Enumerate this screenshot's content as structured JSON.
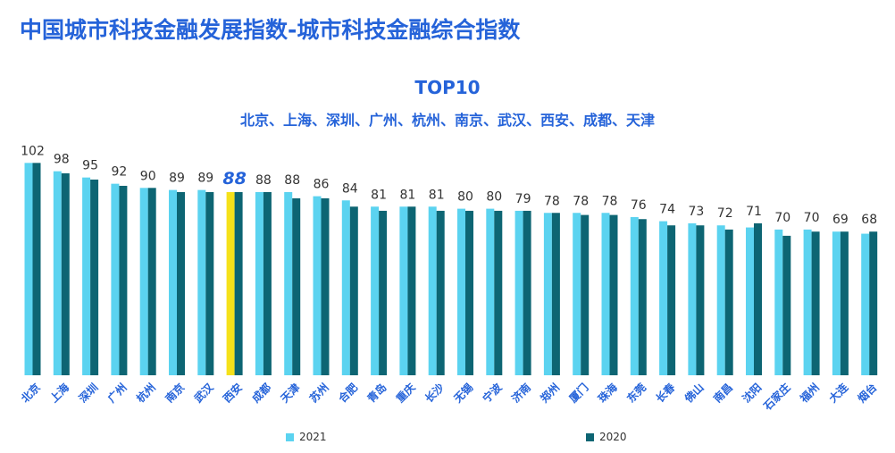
{
  "title": "中国城市科技金融发展指数-城市科技金融综合指数",
  "subtitle1": "TOP10",
  "subtitle2": "北京、上海、深圳、广州、杭州、南京、武汉、西安、成都、天津",
  "colors": {
    "s2021": "#5bd3f0",
    "s2020": "#0d6573",
    "highlight": "#f5e11a",
    "label": "#2563d9",
    "value": "#333333"
  },
  "chart_data": {
    "type": "bar",
    "categories": [
      "北京",
      "上海",
      "深圳",
      "广州",
      "杭州",
      "南京",
      "武汉",
      "西安",
      "成都",
      "天津",
      "苏州",
      "合肥",
      "青岛",
      "重庆",
      "长沙",
      "无锡",
      "宁波",
      "济南",
      "郑州",
      "厦门",
      "珠海",
      "东莞",
      "长春",
      "佛山",
      "南昌",
      "沈阳",
      "石家庄",
      "福州",
      "大连",
      "烟台"
    ],
    "series": [
      {
        "name": "2021",
        "values": [
          102,
          98,
          95,
          92,
          90,
          89,
          89,
          88,
          88,
          88,
          86,
          84,
          81,
          81,
          81,
          80,
          80,
          79,
          78,
          78,
          78,
          76,
          74,
          73,
          72,
          71,
          70,
          70,
          69,
          68
        ]
      },
      {
        "name": "2020",
        "values": [
          102,
          97,
          94,
          91,
          90,
          88,
          88,
          88,
          88,
          85,
          85,
          81,
          79,
          81,
          79,
          79,
          79,
          79,
          78,
          77,
          77,
          75,
          72,
          72,
          70,
          73,
          67,
          69,
          69,
          69
        ]
      }
    ],
    "value_labels": [
      "102",
      "98",
      "95",
      "92",
      "90",
      "89",
      "89",
      "88",
      "88",
      "88",
      "86",
      "84",
      "81",
      "81",
      "81",
      "80",
      "80",
      "79",
      "78",
      "78",
      "78",
      "76",
      "74",
      "73",
      "72",
      "71",
      "70",
      "70",
      "69",
      "68"
    ],
    "highlight_category": "西安",
    "legend_position": "bottom",
    "grid": false
  }
}
